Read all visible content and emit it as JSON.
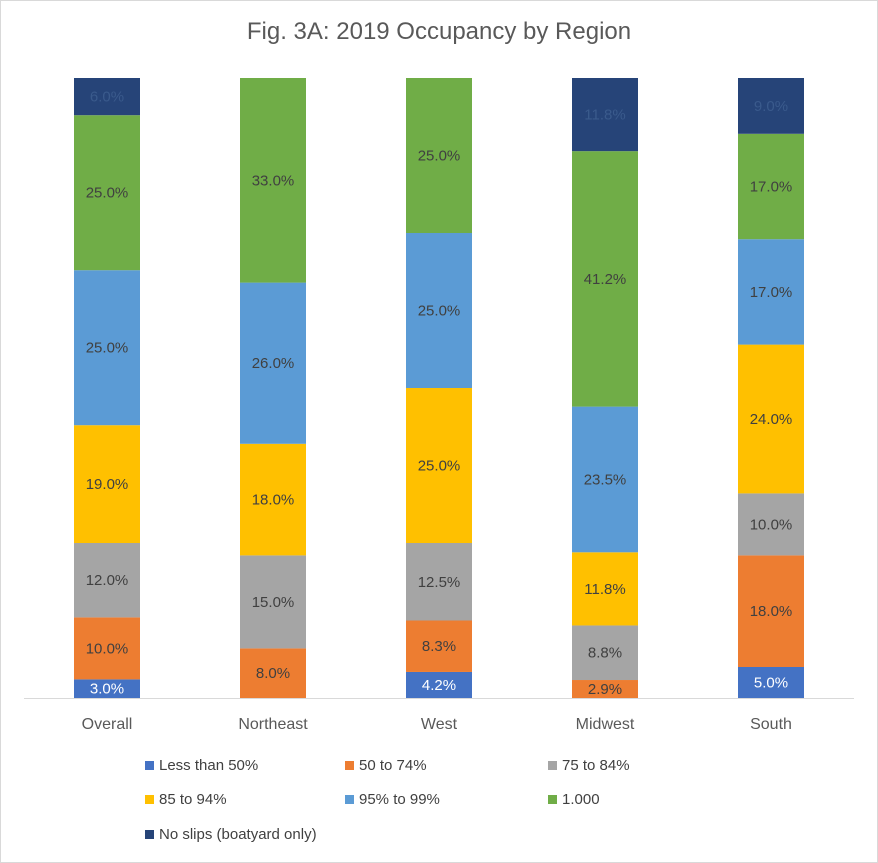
{
  "chart_data": {
    "type": "bar",
    "stacked": true,
    "title": "Fig. 3A: 2019 Occupancy by Region",
    "categories": [
      "Overall",
      "Northeast",
      "West",
      "Midwest",
      "South"
    ],
    "ylim": [
      0,
      100
    ],
    "grid": false,
    "legend_position": "bottom",
    "series": [
      {
        "name": "Less than 50%",
        "color": "#4472c4",
        "values": [
          3.0,
          0.0,
          4.2,
          0.0,
          5.0
        ],
        "labels": [
          "3.0%",
          "",
          "4.2%",
          "",
          "5.0%"
        ]
      },
      {
        "name": "50 to 74%",
        "color": "#ed7d31",
        "values": [
          10.0,
          8.0,
          8.3,
          2.9,
          18.0
        ],
        "labels": [
          "10.0%",
          "8.0%",
          "8.3%",
          "2.9%",
          "18.0%"
        ]
      },
      {
        "name": "75 to 84%",
        "color": "#a5a5a5",
        "values": [
          12.0,
          15.0,
          12.5,
          8.8,
          10.0
        ],
        "labels": [
          "12.0%",
          "15.0%",
          "12.5%",
          "8.8%",
          "10.0%"
        ]
      },
      {
        "name": "85 to 94%",
        "color": "#ffc000",
        "values": [
          19.0,
          18.0,
          25.0,
          11.8,
          24.0
        ],
        "labels": [
          "19.0%",
          "18.0%",
          "25.0%",
          "11.8%",
          "24.0%"
        ]
      },
      {
        "name": "95% to 99%",
        "color": "#5b9bd5",
        "values": [
          25.0,
          26.0,
          25.0,
          23.5,
          17.0
        ],
        "labels": [
          "25.0%",
          "26.0%",
          "25.0%",
          "23.5%",
          "17.0%"
        ]
      },
      {
        "name": "1.000",
        "color": "#70ad47",
        "values": [
          25.0,
          33.0,
          25.0,
          41.2,
          17.0
        ],
        "labels": [
          "25.0%",
          "33.0%",
          "25.0%",
          "41.2%",
          "17.0%"
        ]
      },
      {
        "name": "No slips (boatyard only)",
        "color": "#264478",
        "values": [
          6.0,
          0.0,
          0.0,
          11.8,
          9.0
        ],
        "labels": [
          "6.0%",
          "",
          "",
          "11.8%",
          "9.0%"
        ]
      }
    ]
  }
}
